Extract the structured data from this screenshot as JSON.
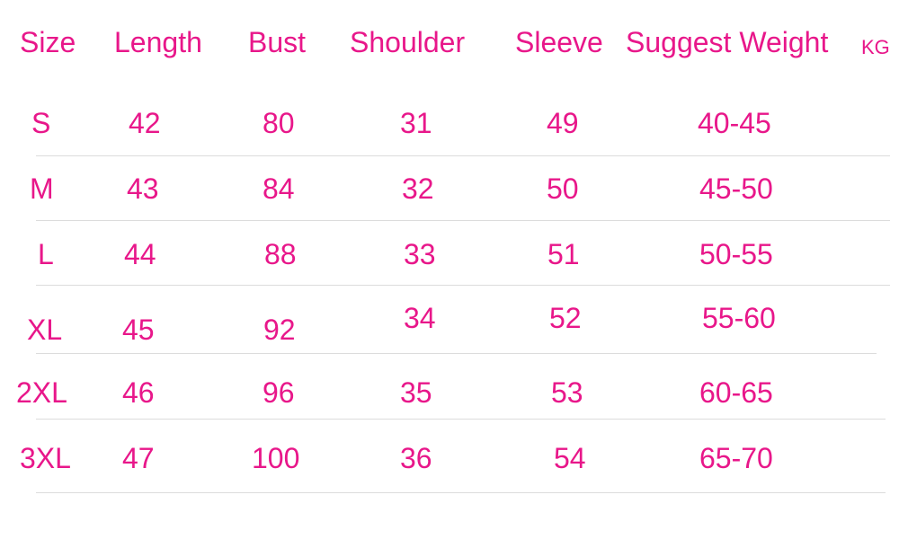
{
  "table": {
    "headers": [
      "Size",
      "Length",
      "Bust",
      "Shoulder",
      "Sleeve",
      "Suggest Weight"
    ],
    "weight_unit": "KG",
    "rows": [
      [
        "S",
        "42",
        "80",
        "31",
        "49",
        "40-45"
      ],
      [
        "M",
        "43",
        "84",
        "32",
        "50",
        "45-50"
      ],
      [
        "L",
        "44",
        "88",
        "33",
        "51",
        "50-55"
      ],
      [
        "XL",
        "45",
        "92",
        "34",
        "52",
        "55-60"
      ],
      [
        "2XL",
        "46",
        "96",
        "35",
        "53",
        "60-65"
      ],
      [
        "3XL",
        "47",
        "100",
        "36",
        "54",
        "65-70"
      ]
    ]
  },
  "colors": {
    "text": "#e8178a",
    "divider": "#dcdcdc"
  }
}
